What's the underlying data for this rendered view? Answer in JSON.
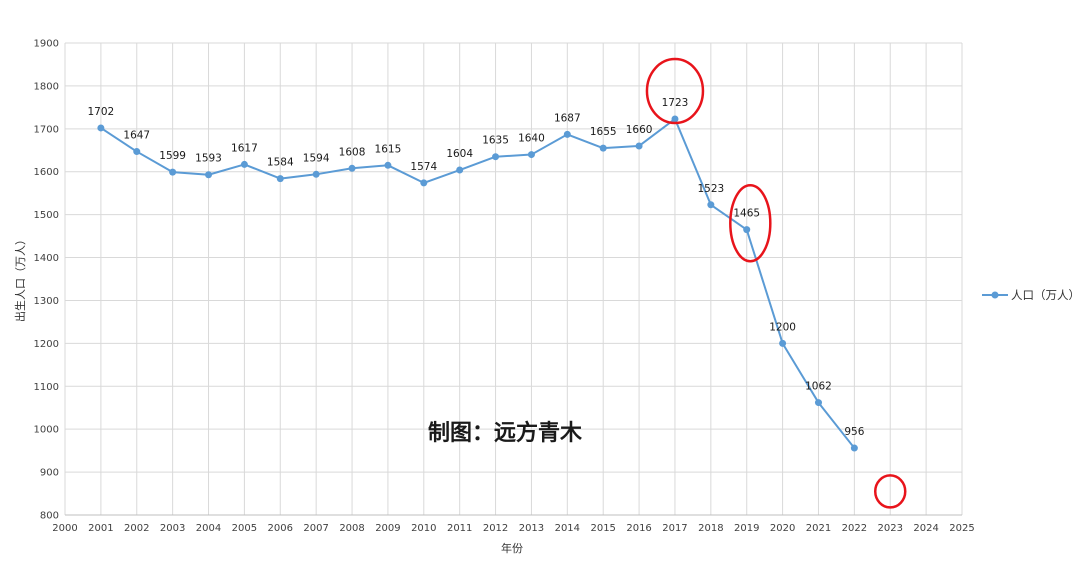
{
  "chart_data": {
    "type": "line",
    "xlabel": "年份",
    "ylabel": "出生人口（万人）",
    "xlim": [
      2000,
      2025
    ],
    "ylim": [
      800,
      1900
    ],
    "x_ticks": [
      2000,
      2001,
      2002,
      2003,
      2004,
      2005,
      2006,
      2007,
      2008,
      2009,
      2010,
      2011,
      2012,
      2013,
      2014,
      2015,
      2016,
      2017,
      2018,
      2019,
      2020,
      2021,
      2022,
      2023,
      2024,
      2025
    ],
    "y_ticks": [
      800,
      900,
      1000,
      1100,
      1200,
      1300,
      1400,
      1500,
      1600,
      1700,
      1800,
      1900
    ],
    "grid": true,
    "legend_position": "right",
    "series": [
      {
        "name": "人口（万人）",
        "color": "#5b9bd5",
        "x": [
          2001,
          2002,
          2003,
          2004,
          2005,
          2006,
          2007,
          2008,
          2009,
          2010,
          2011,
          2012,
          2013,
          2014,
          2015,
          2016,
          2017,
          2018,
          2019,
          2020,
          2021,
          2022
        ],
        "values": [
          1702,
          1647,
          1599,
          1593,
          1617,
          1584,
          1594,
          1608,
          1615,
          1574,
          1604,
          1635,
          1640,
          1687,
          1655,
          1660,
          1723,
          1523,
          1465,
          1200,
          1062,
          956
        ]
      }
    ],
    "annotations": {
      "watermark": "制图：远方青木",
      "highlight_color": "#e8141b",
      "highlights": [
        {
          "x": 2017,
          "y": 1788
        },
        {
          "x": 2019.1,
          "y": 1480
        },
        {
          "x": 2023,
          "y": 855
        }
      ]
    }
  }
}
